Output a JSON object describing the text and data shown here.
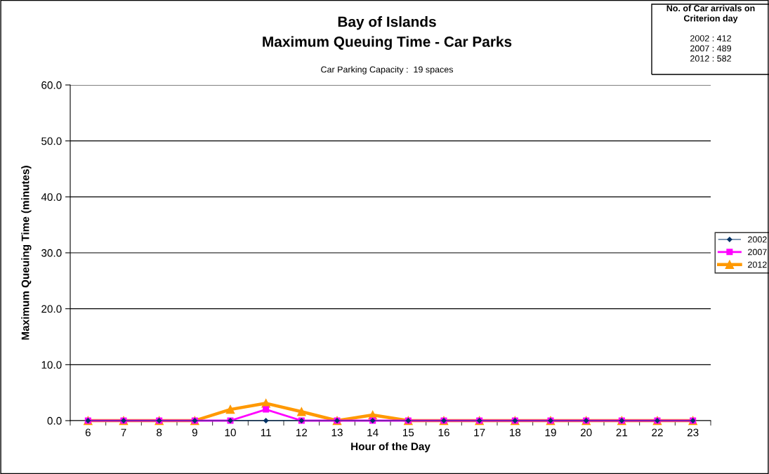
{
  "chart_data": {
    "type": "line",
    "title": "Bay of Islands\nMaximum Queuing Time - Car Parks",
    "subtitle": "Car Parking Capacity :  19 spaces",
    "xlabel": "Hour of the Day",
    "ylabel": "Maximum Queuing Time (minutes)",
    "annotations": [
      "No. of Car arrivals on\nCriterion day",
      "2002 : 412\n2007 : 489\n2012 : 582"
    ],
    "categories": [
      "6",
      "7",
      "8",
      "9",
      "10",
      "11",
      "12",
      "13",
      "14",
      "15",
      "16",
      "17",
      "18",
      "19",
      "20",
      "21",
      "22",
      "23"
    ],
    "series": [
      {
        "name": "2002",
        "color": "#003366",
        "marker": "diamond",
        "values": [
          0,
          0,
          0,
          0,
          0,
          0,
          0,
          0,
          0,
          0,
          0,
          0,
          0,
          0,
          0,
          0,
          0,
          0
        ]
      },
      {
        "name": "2007",
        "color": "#ff00ff",
        "marker": "square",
        "values": [
          0,
          0,
          0,
          0,
          0,
          2.0,
          0,
          0,
          0,
          0,
          0,
          0,
          0,
          0,
          0,
          0,
          0,
          0
        ]
      },
      {
        "name": "2012",
        "color": "#ff9900",
        "marker": "triangle",
        "values": [
          0,
          0,
          0,
          0,
          2.0,
          3.1,
          1.6,
          0,
          1.0,
          0,
          0,
          0,
          0,
          0,
          0,
          0,
          0,
          0
        ]
      }
    ],
    "ylim": [
      0,
      60
    ],
    "yticks": [
      {
        "value": 0,
        "label": "0.0"
      },
      {
        "value": 10,
        "label": "10.0"
      },
      {
        "value": 20,
        "label": "20.0"
      },
      {
        "value": 30,
        "label": "30.0"
      },
      {
        "value": 40,
        "label": "40.0"
      },
      {
        "value": 50,
        "label": "50.0"
      },
      {
        "value": 60,
        "label": "60.0"
      }
    ],
    "grid": "y",
    "legend": "right"
  }
}
